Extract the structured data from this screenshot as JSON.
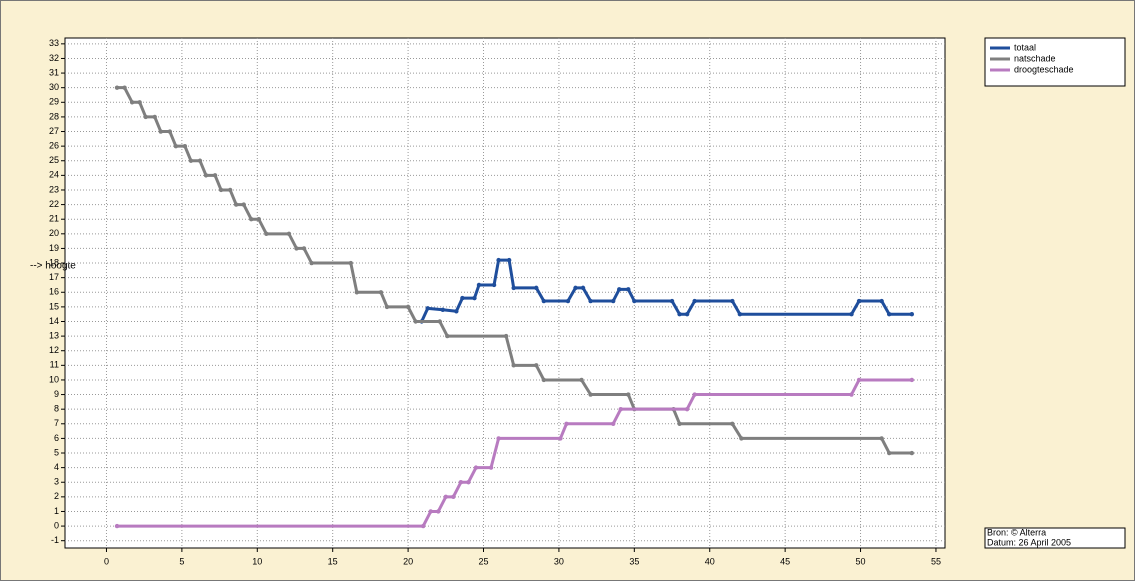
{
  "chart_data": {
    "type": "line",
    "y_label": "--> hoogte",
    "source": "Bron: © Alterra",
    "date": "Datum: 26 April 2005",
    "xlim": [
      -2.75,
      55.6
    ],
    "xticks": [
      0,
      5,
      10,
      15,
      20,
      25,
      30,
      35,
      40,
      45,
      50,
      55
    ],
    "ylim": [
      -1.5,
      33.4
    ],
    "yticks": [
      -1,
      0,
      1,
      2,
      3,
      4,
      5,
      6,
      7,
      8,
      9,
      10,
      11,
      12,
      13,
      14,
      15,
      16,
      17,
      18,
      19,
      20,
      21,
      22,
      23,
      24,
      25,
      26,
      27,
      28,
      29,
      30,
      31,
      32,
      33
    ],
    "grid": true,
    "legend": "top-right",
    "series": [
      {
        "name": "totaal",
        "color": "#1f4e9c",
        "x": [
          20.9,
          21.3,
          22.3,
          23.2,
          23.6,
          24.4,
          24.7,
          25.7,
          26.0,
          26.7,
          27.0,
          28.5,
          29.0,
          30.6,
          31.1,
          31.6,
          32.1,
          33.6,
          34.0,
          34.6,
          35.0,
          37.5,
          38.0,
          38.5,
          39.0,
          41.5,
          42.0,
          49.4,
          49.9,
          51.4,
          51.9,
          53.4
        ],
        "values": [
          14,
          14.9,
          14.8,
          14.7,
          15.6,
          15.6,
          16.5,
          16.5,
          18.2,
          18.2,
          16.3,
          16.3,
          15.4,
          15.4,
          16.3,
          16.3,
          15.4,
          15.4,
          16.2,
          16.2,
          15.4,
          15.4,
          14.5,
          14.5,
          15.4,
          15.4,
          14.5,
          14.5,
          15.4,
          15.4,
          14.5,
          14.5
        ]
      },
      {
        "name": "natschade",
        "color": "#7f7f7f",
        "x": [
          0.7,
          1.2,
          1.7,
          2.2,
          2.6,
          3.2,
          3.6,
          4.2,
          4.6,
          5.2,
          5.6,
          6.2,
          6.6,
          7.2,
          7.6,
          8.2,
          8.6,
          9.1,
          9.6,
          10.1,
          10.6,
          12.1,
          12.6,
          13.1,
          13.6,
          16.2,
          16.6,
          18.2,
          18.6,
          20.0,
          20.5,
          22.1,
          22.6,
          26.5,
          27.0,
          28.5,
          29.0,
          31.5,
          32.1,
          34.6,
          35.0,
          37.6,
          38.0,
          41.5,
          42.1,
          51.4,
          51.9,
          53.4
        ],
        "values": [
          30,
          30,
          29,
          29,
          28,
          28,
          27,
          27,
          26,
          26,
          25,
          25,
          24,
          24,
          23,
          23,
          22,
          22,
          21,
          21,
          20,
          20,
          19,
          19,
          18,
          18,
          16,
          16,
          15,
          15,
          14,
          14,
          13,
          13,
          11,
          11,
          10,
          10,
          9,
          9,
          8,
          8,
          7,
          7,
          6,
          6,
          5,
          5
        ]
      },
      {
        "name": "droogteschade",
        "color": "#b87bc0",
        "x": [
          0.7,
          21.0,
          21.5,
          22.0,
          22.5,
          23.0,
          23.5,
          24.0,
          24.5,
          25.5,
          26.0,
          30.1,
          30.5,
          33.6,
          34.1,
          38.5,
          39.0,
          49.4,
          49.9,
          53.4
        ],
        "values": [
          0,
          0,
          1,
          1,
          2,
          2,
          3,
          3,
          4,
          4,
          6,
          6,
          7,
          7,
          8,
          8,
          9,
          9,
          10,
          10
        ]
      }
    ]
  }
}
